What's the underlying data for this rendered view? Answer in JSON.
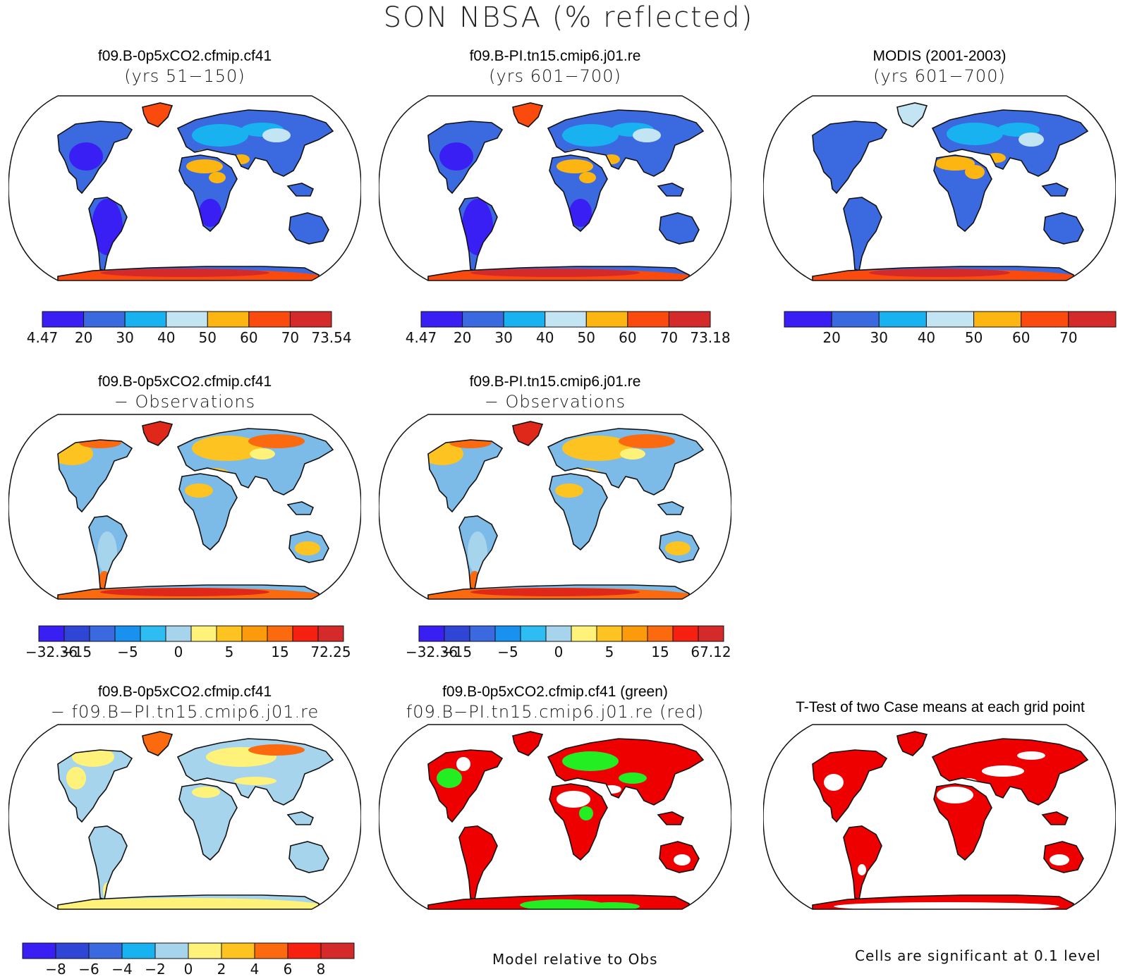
{
  "page": {
    "title": "SON NBSA (% reflected)",
    "footer_left": "Model relative to Obs",
    "footer_right": "Cells are significant at 0.1 level"
  },
  "panels": [
    {
      "id": "p1",
      "title1": "f09.B-0p5xCO2.cfmip.cf41",
      "title2": "(yrs 51−150)",
      "palette": "abs",
      "scheme": "abs1"
    },
    {
      "id": "p2",
      "title1": "f09.B-PI.tn15.cmip6.j01.re",
      "title2": "(yrs 601−700)",
      "palette": "abs",
      "scheme": "abs1"
    },
    {
      "id": "p3",
      "title1": "MODIS (2001-2003)",
      "title2": "(yrs 601−700)",
      "palette": "abs",
      "scheme": "abs2"
    },
    {
      "id": "p4",
      "title1": "f09.B-0p5xCO2.cfmip.cf41",
      "title2": "− Observations",
      "palette": "diff",
      "scheme": "diff1"
    },
    {
      "id": "p5",
      "title1": "f09.B-PI.tn15.cmip6.j01.re",
      "title2": "− Observations",
      "palette": "diff",
      "scheme": "diff1"
    },
    {
      "id": "p6",
      "title1": "f09.B-0p5xCO2.cfmip.cf41",
      "title2": "− f09.B−PI.tn15.cmip6.j01.re",
      "palette": "diff2",
      "scheme": "diff2"
    },
    {
      "id": "p7",
      "title1": "f09.B-0p5xCO2.cfmip.cf41 (green)",
      "title2": "f09.B−PI.tn15.cmip6.j01.re (red)",
      "palette": "rg",
      "scheme": "rg"
    },
    {
      "id": "p8",
      "title1": "T-Test of two Case means at each grid point",
      "title2": "",
      "palette": "tt",
      "scheme": "tt"
    }
  ],
  "colorbars": {
    "cb1": {
      "colors": [
        "#3a1ff5",
        "#3b6ae0",
        "#18b2f0",
        "#c3e4f2",
        "#fdb512",
        "#fb4a0e",
        "#d42a2a"
      ],
      "labels": [
        "4.47",
        "20",
        "30",
        "40",
        "50",
        "60",
        "70",
        "73.54"
      ]
    },
    "cb2": {
      "colors": [
        "#3a1ff5",
        "#3b6ae0",
        "#18b2f0",
        "#c3e4f2",
        "#fdb512",
        "#fb4a0e",
        "#d42a2a"
      ],
      "labels": [
        "4.47",
        "20",
        "30",
        "40",
        "50",
        "60",
        "70",
        "73.18"
      ]
    },
    "cb3": {
      "colors": [
        "#3a1ff5",
        "#3b6ae0",
        "#18b2f0",
        "#c3e4f2",
        "#fdb512",
        "#fb4a0e",
        "#d42a2a"
      ],
      "labels": [
        "",
        "20",
        "30",
        "40",
        "50",
        "60",
        "70",
        ""
      ]
    },
    "cb4": {
      "colors": [
        "#3a1ff5",
        "#2f45d6",
        "#3b6ae0",
        "#1891f0",
        "#2dbdf2",
        "#a6d4ec",
        "#fff27a",
        "#fdc320",
        "#fb9a0a",
        "#fb6a0e",
        "#f52010",
        "#d42a2a"
      ],
      "labels": [
        "−32.36",
        "−15",
        "",
        "−5",
        "",
        "0",
        "",
        "5",
        "",
        "15",
        "",
        "72.25"
      ]
    },
    "cb5": {
      "colors": [
        "#3a1ff5",
        "#2f45d6",
        "#3b6ae0",
        "#1891f0",
        "#2dbdf2",
        "#a6d4ec",
        "#fff27a",
        "#fdc320",
        "#fb9a0a",
        "#fb6a0e",
        "#f52010",
        "#d42a2a"
      ],
      "labels": [
        "−32.36",
        "−15",
        "",
        "−5",
        "",
        "0",
        "",
        "5",
        "",
        "15",
        "",
        "67.12"
      ]
    },
    "cb6": {
      "colors": [
        "#3a1ff5",
        "#2f45d6",
        "#3b6ae0",
        "#18b2f0",
        "#a6d4ec",
        "#fff27a",
        "#fdc320",
        "#fb6a0e",
        "#f52010",
        "#d42a2a"
      ],
      "labels": [
        "",
        "−8",
        "−6",
        "−4",
        "−2",
        "0",
        "2",
        "4",
        "6",
        "8",
        ""
      ]
    }
  },
  "palettes": {
    "abs": {
      "land": "#3b6ae0",
      "dark": "#3a1ff5",
      "light": "#18b2f0",
      "desert": "#fdb512",
      "pale": "#c3e4f2",
      "ice": "#fb4a0e",
      "icedark": "#d42a2a"
    },
    "absm": {
      "land": "#3b6ae0",
      "dark": "#3b6ae0",
      "light": "#18b2f0",
      "desert": "#fdb512",
      "pale": "#c3e4f2",
      "ice": "#fdb512",
      "icedark": "#fb4a0e"
    },
    "diff": {
      "land": "#7cbbe8",
      "dark": "#3b8ee0",
      "light": "#a6d4ec",
      "desert": "#fdc320",
      "pale": "#fff27a",
      "ice": "#fb6a0e",
      "icedark": "#e0281a"
    },
    "diff2": {
      "land": "#a6d4ec",
      "dark": "#7cbbe8",
      "light": "#c6e4f4",
      "desert": "#fff27a",
      "pale": "#fff27a",
      "ice": "#fff27a",
      "icedark": "#fb6a0e"
    },
    "rg": {
      "land": "#ee0000",
      "dark": "#ee0000",
      "light": "#ffffff",
      "desert": "#22ee22",
      "pale": "#ffffff",
      "ice": "#ee0000",
      "icedark": "#22ee22"
    },
    "tt": {
      "land": "#ee0000",
      "dark": "#ee0000",
      "light": "#ffffff",
      "desert": "#ffffff",
      "pale": "#ee0000",
      "ice": "#ee0000",
      "icedark": "#ffffff"
    }
  }
}
